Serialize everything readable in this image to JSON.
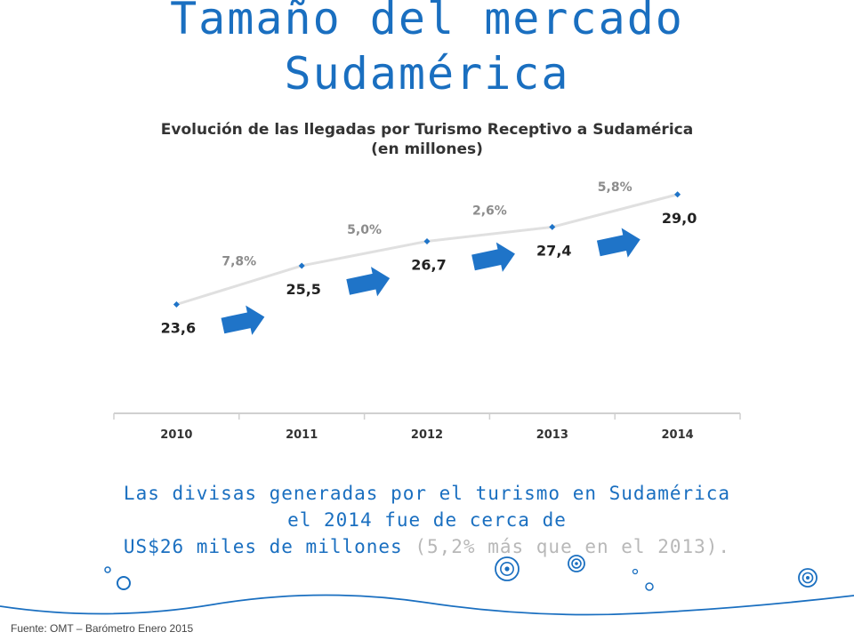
{
  "page": {
    "title_line1": "Tamaño del mercado",
    "title_line2": "Sudamérica",
    "caption_line1": "Las divisas generadas por el turismo en Sudamérica",
    "caption_line2": "el 2014 fue de cerca de",
    "caption_line3_main": "US$26 miles de millones",
    "caption_line3_muted": "(5,2% más que en el 2013).",
    "source": "Fuente: OMT – Barómetro Enero 2015"
  },
  "colors": {
    "accent": "#1a6fc0",
    "arrow": "#1f74c8",
    "line": "#e0e0e0",
    "growth_label": "#8c8c8c",
    "value_label": "#222222"
  },
  "chart_data": {
    "type": "line",
    "title": "Evolución de las llegadas por Turismo Receptivo a Sudamérica",
    "subtitle": "(en millones)",
    "categories": [
      "2010",
      "2011",
      "2012",
      "2013",
      "2014"
    ],
    "series": [
      {
        "values": [
          23.6,
          25.5,
          26.7,
          27.4,
          29.0
        ]
      }
    ],
    "value_labels": [
      "23,6",
      "25,5",
      "26,7",
      "27,4",
      "29,0"
    ],
    "growth_labels": [
      "7,8%",
      "5,0%",
      "2,6%",
      "5,8%"
    ],
    "grid": false,
    "legend": "none"
  }
}
